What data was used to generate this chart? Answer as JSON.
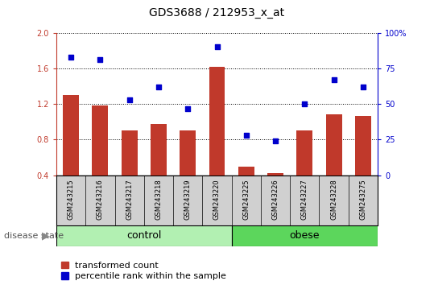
{
  "title": "GDS3688 / 212953_x_at",
  "samples": [
    "GSM243215",
    "GSM243216",
    "GSM243217",
    "GSM243218",
    "GSM243219",
    "GSM243220",
    "GSM243225",
    "GSM243226",
    "GSM243227",
    "GSM243228",
    "GSM243275"
  ],
  "transformed_count": [
    1.3,
    1.18,
    0.9,
    0.98,
    0.9,
    1.62,
    0.5,
    0.42,
    0.9,
    1.08,
    1.07
  ],
  "percentile_rank": [
    83,
    81,
    53,
    62,
    47,
    90,
    28,
    24,
    50,
    67,
    62
  ],
  "ylim_left": [
    0.4,
    2.0
  ],
  "ylim_right": [
    0,
    100
  ],
  "yticks_left": [
    0.4,
    0.8,
    1.2,
    1.6,
    2.0
  ],
  "yticks_right": [
    0,
    25,
    50,
    75,
    100
  ],
  "ytick_labels_right": [
    "0",
    "25",
    "50",
    "75",
    "100%"
  ],
  "bar_color": "#c0392b",
  "dot_color": "#0000cc",
  "bar_bottom": 0.4,
  "control_count": 6,
  "obese_count": 5,
  "control_label": "control",
  "obese_label": "obese",
  "disease_state_label": "disease state",
  "control_color": "#b2f0b2",
  "obese_color": "#5cd65c",
  "legend_bar_label": "transformed count",
  "legend_dot_label": "percentile rank within the sample",
  "tick_area_color": "#d0d0d0",
  "title_fontsize": 10,
  "label_fontsize": 7,
  "group_fontsize": 9,
  "legend_fontsize": 8
}
